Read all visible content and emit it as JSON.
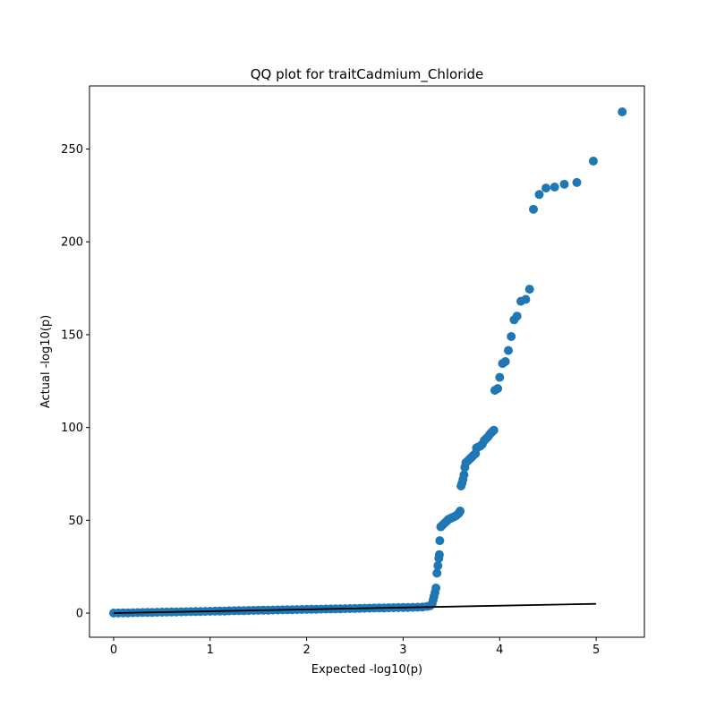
{
  "chart_data": {
    "type": "scatter",
    "title": "QQ plot for traitCadmium_Chloride",
    "xlabel": "Expected -log10(p)",
    "ylabel": "Actual -log10(p)",
    "xlim": [
      -0.25,
      5.5
    ],
    "ylim": [
      -13,
      284
    ],
    "x_ticks": [
      0,
      1,
      2,
      3,
      4,
      5
    ],
    "y_ticks": [
      0,
      50,
      100,
      150,
      200,
      250
    ],
    "grid": false,
    "point_color": "#1f77b4",
    "line_color": "#000000",
    "reference_line": {
      "x": [
        0,
        5
      ],
      "y": [
        0,
        5
      ]
    },
    "series": [
      {
        "values": [
          [
            0.0,
            0.0
          ],
          [
            0.05,
            0.05
          ],
          [
            0.1,
            0.1
          ],
          [
            0.15,
            0.15
          ],
          [
            0.2,
            0.2
          ],
          [
            0.25,
            0.25
          ],
          [
            0.3,
            0.3
          ],
          [
            0.35,
            0.35
          ],
          [
            0.4,
            0.4
          ],
          [
            0.45,
            0.45
          ],
          [
            0.5,
            0.5
          ],
          [
            0.55,
            0.55
          ],
          [
            0.6,
            0.6
          ],
          [
            0.65,
            0.65
          ],
          [
            0.7,
            0.7
          ],
          [
            0.75,
            0.75
          ],
          [
            0.8,
            0.8
          ],
          [
            0.85,
            0.85
          ],
          [
            0.9,
            0.9
          ],
          [
            0.95,
            0.95
          ],
          [
            1.0,
            1.0
          ],
          [
            1.05,
            1.05
          ],
          [
            1.1,
            1.1
          ],
          [
            1.15,
            1.15
          ],
          [
            1.2,
            1.2
          ],
          [
            1.25,
            1.25
          ],
          [
            1.3,
            1.3
          ],
          [
            1.35,
            1.35
          ],
          [
            1.4,
            1.4
          ],
          [
            1.45,
            1.45
          ],
          [
            1.5,
            1.5
          ],
          [
            1.55,
            1.55
          ],
          [
            1.6,
            1.6
          ],
          [
            1.65,
            1.65
          ],
          [
            1.7,
            1.7
          ],
          [
            1.75,
            1.75
          ],
          [
            1.8,
            1.8
          ],
          [
            1.85,
            1.85
          ],
          [
            1.9,
            1.9
          ],
          [
            1.95,
            1.95
          ],
          [
            2.0,
            2.0
          ],
          [
            2.05,
            2.05
          ],
          [
            2.1,
            2.1
          ],
          [
            2.15,
            2.15
          ],
          [
            2.2,
            2.2
          ],
          [
            2.25,
            2.25
          ],
          [
            2.3,
            2.3
          ],
          [
            2.35,
            2.35
          ],
          [
            2.4,
            2.4
          ],
          [
            2.45,
            2.45
          ],
          [
            2.5,
            2.5
          ],
          [
            2.55,
            2.55
          ],
          [
            2.6,
            2.6
          ],
          [
            2.65,
            2.65
          ],
          [
            2.7,
            2.7
          ],
          [
            2.75,
            2.75
          ],
          [
            2.8,
            2.8
          ],
          [
            2.85,
            2.85
          ],
          [
            2.9,
            2.9
          ],
          [
            2.95,
            2.95
          ],
          [
            3.0,
            3.0
          ],
          [
            3.05,
            3.05
          ],
          [
            3.1,
            3.1
          ],
          [
            3.15,
            3.15
          ],
          [
            3.2,
            3.3
          ],
          [
            3.25,
            3.6
          ],
          [
            3.28,
            4.0
          ],
          [
            3.3,
            5.0
          ],
          [
            3.31,
            7.0
          ],
          [
            3.32,
            9.0
          ],
          [
            3.33,
            11.0
          ],
          [
            3.34,
            13.5
          ],
          [
            3.35,
            21.5
          ],
          [
            3.36,
            25.5
          ],
          [
            3.37,
            29.5
          ],
          [
            3.375,
            31.5
          ],
          [
            3.38,
            39.0
          ],
          [
            3.39,
            46.5
          ],
          [
            3.41,
            47.5
          ],
          [
            3.43,
            48.5
          ],
          [
            3.45,
            49.5
          ],
          [
            3.47,
            50.5
          ],
          [
            3.49,
            51.0
          ],
          [
            3.51,
            51.5
          ],
          [
            3.53,
            52.0
          ],
          [
            3.55,
            52.5
          ],
          [
            3.57,
            53.5
          ],
          [
            3.58,
            54.0
          ],
          [
            3.59,
            55.0
          ],
          [
            3.6,
            68.5
          ],
          [
            3.61,
            70.0
          ],
          [
            3.62,
            72.0
          ],
          [
            3.63,
            74.5
          ],
          [
            3.64,
            78.5
          ],
          [
            3.65,
            81.0
          ],
          [
            3.67,
            82.0
          ],
          [
            3.69,
            83.0
          ],
          [
            3.71,
            84.0
          ],
          [
            3.73,
            85.0
          ],
          [
            3.75,
            86.0
          ],
          [
            3.76,
            89.0
          ],
          [
            3.78,
            89.5
          ],
          [
            3.8,
            90.0
          ],
          [
            3.82,
            91.0
          ],
          [
            3.84,
            93.0
          ],
          [
            3.86,
            94.0
          ],
          [
            3.88,
            95.0
          ],
          [
            3.9,
            96.5
          ],
          [
            3.92,
            97.5
          ],
          [
            3.94,
            98.5
          ],
          [
            3.95,
            120.0
          ],
          [
            3.98,
            121.0
          ],
          [
            4.0,
            127.0
          ],
          [
            4.03,
            134.5
          ],
          [
            4.06,
            135.5
          ],
          [
            4.09,
            141.5
          ],
          [
            4.12,
            149.0
          ],
          [
            4.15,
            158.0
          ],
          [
            4.18,
            160.0
          ],
          [
            4.22,
            168.0
          ],
          [
            4.27,
            169.0
          ],
          [
            4.31,
            174.5
          ],
          [
            4.35,
            217.5
          ],
          [
            4.41,
            225.5
          ],
          [
            4.48,
            229.0
          ],
          [
            4.57,
            229.5
          ],
          [
            4.67,
            231.0
          ],
          [
            4.8,
            232.0
          ],
          [
            4.97,
            243.5
          ],
          [
            5.27,
            270.0
          ]
        ]
      }
    ]
  }
}
